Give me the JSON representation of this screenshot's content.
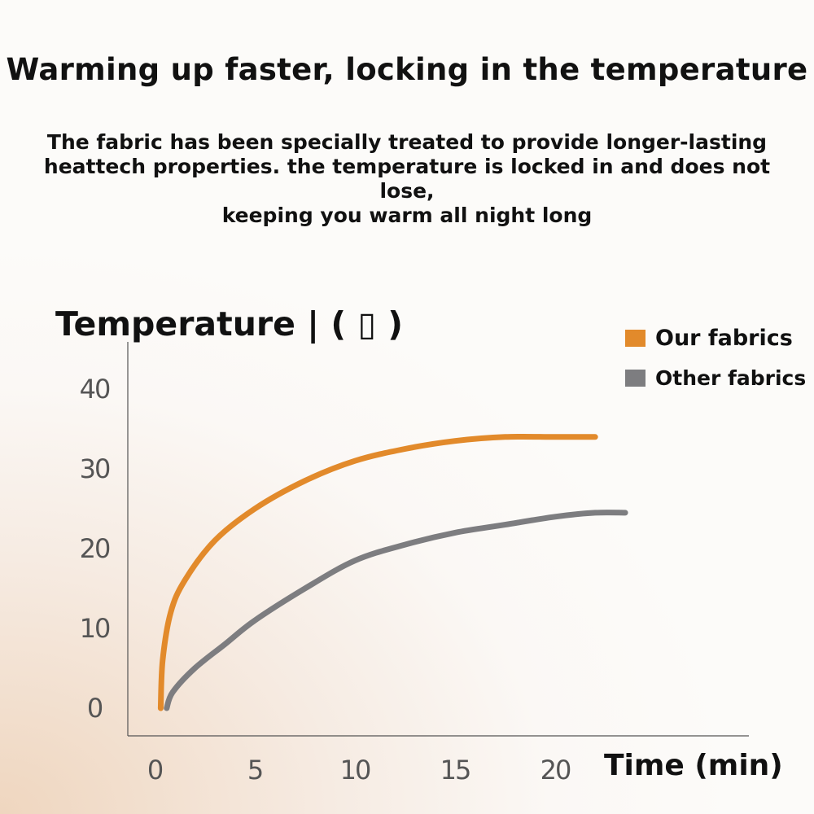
{
  "headline": "Warming up faster, locking in the temperature",
  "subcopy": [
    "The fabric has been specially treated to provide longer-lasting",
    "heattech properties. the temperature is locked in and does not lose,",
    "keeping you warm all night long"
  ],
  "chart_data": {
    "type": "line",
    "ylabel": "Temperature |  ( ▯ )",
    "xlabel": "Time (min)",
    "xlim": [
      0,
      25
    ],
    "ylim": [
      0,
      40
    ],
    "x_ticks": [
      "0",
      "5",
      "10",
      "15",
      "20"
    ],
    "y_ticks": [
      "0",
      "10",
      "20",
      "30",
      "40"
    ],
    "legend_position": "top-right",
    "series": [
      {
        "name": "Our fabrics",
        "color": "#e28a2b",
        "points": [
          [
            0.3,
            0
          ],
          [
            0.4,
            6
          ],
          [
            0.8,
            12
          ],
          [
            1.5,
            16
          ],
          [
            3,
            21
          ],
          [
            5,
            25
          ],
          [
            7.5,
            28.5
          ],
          [
            10,
            31
          ],
          [
            12.5,
            32.5
          ],
          [
            15,
            33.5
          ],
          [
            17.5,
            34
          ],
          [
            20,
            34
          ],
          [
            22,
            34
          ]
        ]
      },
      {
        "name": "Other fabrics",
        "color": "#7d7d80",
        "points": [
          [
            0.6,
            0
          ],
          [
            0.9,
            2
          ],
          [
            2,
            5
          ],
          [
            3.5,
            8
          ],
          [
            5,
            11
          ],
          [
            7.5,
            15
          ],
          [
            10,
            18.5
          ],
          [
            12.5,
            20.5
          ],
          [
            15,
            22
          ],
          [
            17.5,
            23
          ],
          [
            20,
            24
          ],
          [
            22,
            24.5
          ],
          [
            23.5,
            24.5
          ]
        ]
      }
    ]
  }
}
